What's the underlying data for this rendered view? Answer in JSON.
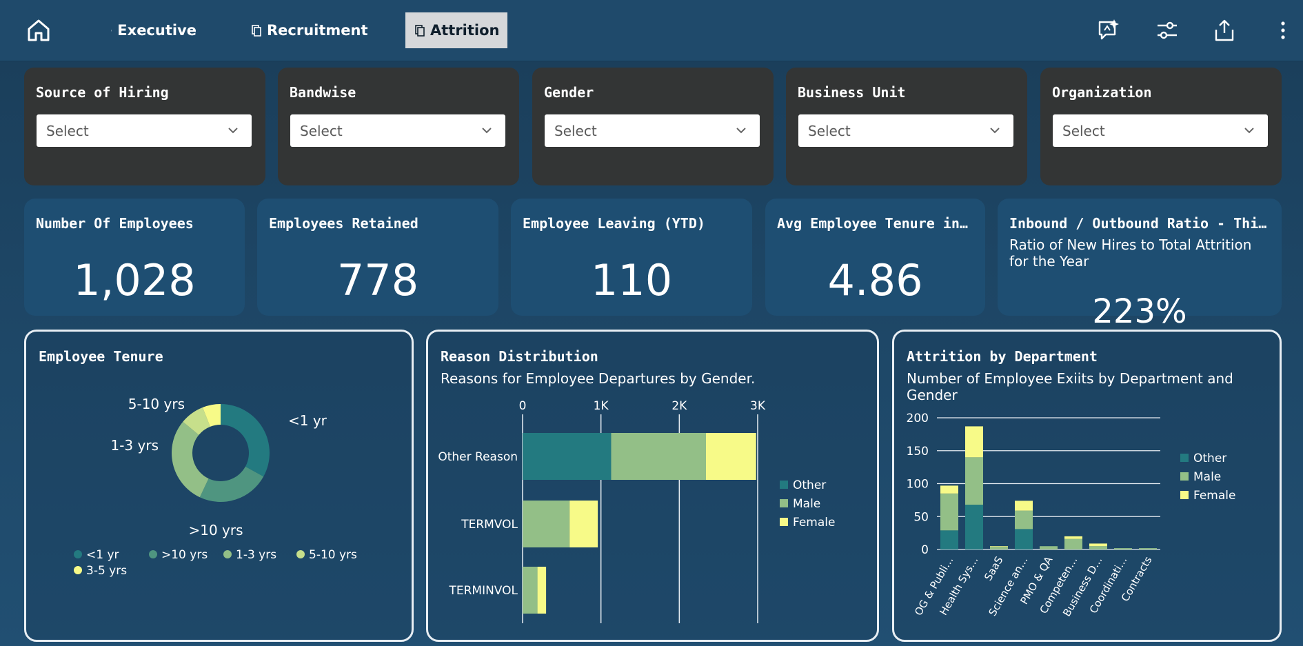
{
  "nav": {
    "tabs": [
      {
        "label": "Executive"
      },
      {
        "label": "Recruitment"
      },
      {
        "label": "Attrition"
      }
    ],
    "active_tab": "Attrition"
  },
  "filters": [
    {
      "title": "Source of Hiring",
      "placeholder": "Select"
    },
    {
      "title": "Bandwise",
      "placeholder": "Select"
    },
    {
      "title": "Gender",
      "placeholder": "Select"
    },
    {
      "title": "Business Unit",
      "placeholder": "Select"
    },
    {
      "title": "Organization",
      "placeholder": "Select"
    }
  ],
  "kpis": [
    {
      "title": "Number Of Employees",
      "value": "1,028"
    },
    {
      "title": "Employees Retained",
      "value": "778"
    },
    {
      "title": "Employee Leaving (YTD)",
      "value": "110"
    },
    {
      "title": "Avg Employee Tenure in…",
      "value": "4.86"
    },
    {
      "title": "Inbound / Outbound Ratio - Thi…",
      "subtitle": "Ratio of New Hires to Total Attrition for the Year",
      "value": "223%"
    }
  ],
  "colors": {
    "other": "#237a80",
    "male": "#93bf87",
    "female": "#f7fa88",
    "tenure_lt1": "#237a80",
    "tenure_gt10": "#4f9580",
    "tenure_1_3": "#93bf87",
    "tenure_5_10": "#c7df8b",
    "tenure_3_5": "#f7fa88"
  },
  "panels": {
    "tenure": {
      "title": "Employee Tenure"
    },
    "reason": {
      "title": "Reason Distribution",
      "subtitle": "Reasons for Employee Departures by Gender."
    },
    "dept": {
      "title": "Attrition by Department",
      "subtitle": "Number of Employee Exiits by Department and Gender"
    }
  },
  "chart_data": [
    {
      "type": "pie",
      "title": "Employee Tenure",
      "categories": [
        "<1 yr",
        ">10 yrs",
        "1-3 yrs",
        "5-10 yrs",
        "3-5 yrs"
      ],
      "values": [
        33,
        24,
        29,
        8,
        6
      ],
      "legend": "bottom"
    },
    {
      "type": "bar",
      "orientation": "horizontal",
      "stacked": true,
      "title": "Reason Distribution",
      "subtitle": "Reasons for Employee Departures by Gender.",
      "categories": [
        "Other Reason",
        "TERMVOL",
        "TERMINVOL"
      ],
      "series": [
        {
          "name": "Other",
          "values": [
            1130,
            0,
            0
          ]
        },
        {
          "name": "Male",
          "values": [
            1210,
            600,
            190
          ]
        },
        {
          "name": "Female",
          "values": [
            640,
            360,
            110
          ]
        }
      ],
      "xlim": [
        0,
        3000
      ],
      "xticks": [
        "0",
        "1K",
        "2K",
        "3K"
      ],
      "legend": "right"
    },
    {
      "type": "bar",
      "stacked": true,
      "title": "Attrition by Department",
      "subtitle": "Number of Employee Exiits by Department and Gender",
      "categories": [
        "OG & Publi…",
        "Health Sys…",
        "SaaS",
        "Science an…",
        "PMO & QA",
        "Competen…",
        "Business D…",
        "Coordinati…",
        "Contracts"
      ],
      "series": [
        {
          "name": "Other",
          "values": [
            29,
            68,
            0,
            31,
            0,
            0,
            0,
            0,
            0
          ]
        },
        {
          "name": "Male",
          "values": [
            56,
            72,
            4,
            28,
            5,
            16,
            5,
            2,
            2
          ]
        },
        {
          "name": "Female",
          "values": [
            12,
            47,
            1,
            15,
            0,
            4,
            4,
            0,
            0
          ]
        }
      ],
      "ylim": [
        0,
        200
      ],
      "yticks": [
        0,
        50,
        100,
        150,
        200
      ],
      "legend": "right"
    }
  ]
}
